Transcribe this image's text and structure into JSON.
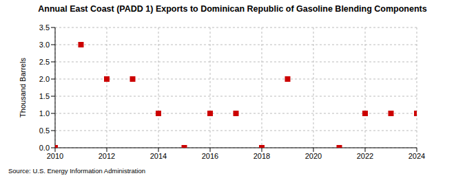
{
  "chart_data": {
    "type": "scatter",
    "title": "Annual East Coast (PADD 1) Exports to Dominican Republic of Gasoline Blending Components",
    "y_label": "Thousand Barrels",
    "source": "Source: U.S. Energy Information Administration",
    "x": [
      2010,
      2011,
      2012,
      2013,
      2014,
      2015,
      2016,
      2017,
      2018,
      2019,
      2021,
      2022,
      2023,
      2024
    ],
    "values": [
      0,
      3,
      2,
      2,
      1,
      0,
      1,
      1,
      0,
      2,
      0,
      1,
      1,
      1
    ],
    "color": "#cc0000",
    "marker": "square",
    "xlim": [
      2010,
      2024
    ],
    "xticks": [
      2010,
      2012,
      2014,
      2016,
      2018,
      2020,
      2022,
      2024
    ],
    "ylim": [
      0,
      3.5
    ],
    "yticks": [
      {
        "value": 0,
        "label": "0.0"
      },
      {
        "value": 0.5,
        "label": "0.5"
      },
      {
        "value": 1,
        "label": "1.0"
      },
      {
        "value": 1.5,
        "label": "1.5"
      },
      {
        "value": 2,
        "label": "2.0"
      },
      {
        "value": 2.5,
        "label": "2.5"
      },
      {
        "value": 3,
        "label": "3.0"
      },
      {
        "value": 3.5,
        "label": "3.5"
      }
    ],
    "grid": true
  }
}
